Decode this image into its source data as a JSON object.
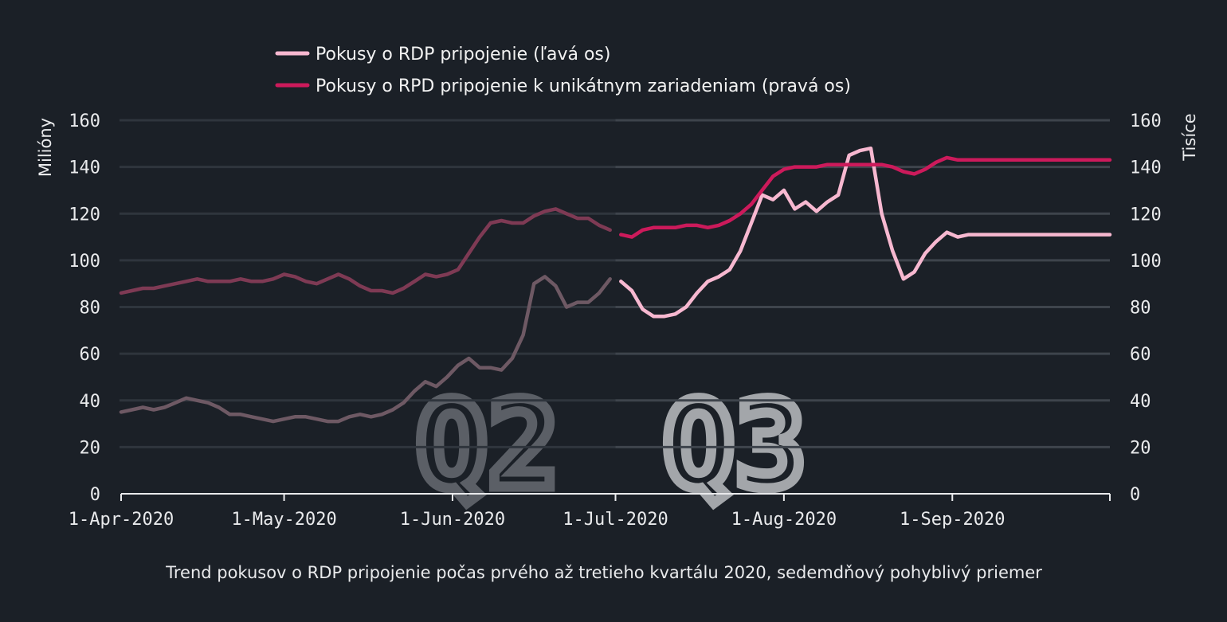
{
  "chart_data": {
    "type": "line",
    "caption": "Trend pokusov o RDP pripojenie počas prvého až tretieho kvartálu 2020, sedemdňový pohyblivý priemer",
    "ylabel_left": "Milióny",
    "ylabel_right": "Tisíce",
    "ylim": [
      0,
      160
    ],
    "y_ticks": [
      "0",
      "20",
      "40",
      "60",
      "80",
      "100",
      "120",
      "140",
      "160"
    ],
    "x_tick_labels": [
      "1-Apr-2020",
      "1-May-2020",
      "1-Jun-2020",
      "1-Jul-2020",
      "1-Aug-2020",
      "1-Sep-2020"
    ],
    "x_tick_days": [
      0,
      30,
      61,
      91,
      122,
      153
    ],
    "x_end_day": 182,
    "quarter_split_day": 91,
    "grid": true,
    "legend_position": "top",
    "quarter_labels": [
      {
        "text": "Q2",
        "color": "#5b5f66"
      },
      {
        "text": "Q3",
        "color": "#a3a6aa"
      }
    ],
    "series": [
      {
        "name": "Pokusy o RDP pripojenie (ľavá os)",
        "axis": "left",
        "color": "#f7b8d0",
        "color_faded": "#6e5964",
        "x": [
          0,
          2,
          4,
          6,
          8,
          10,
          12,
          14,
          16,
          18,
          20,
          22,
          24,
          26,
          28,
          30,
          32,
          34,
          36,
          38,
          40,
          42,
          44,
          46,
          48,
          50,
          52,
          54,
          56,
          58,
          60,
          62,
          64,
          66,
          68,
          70,
          72,
          74,
          76,
          78,
          80,
          82,
          84,
          86,
          88,
          90,
          92,
          94,
          96,
          98,
          100,
          102,
          104,
          106,
          108,
          110,
          112,
          114,
          116,
          118,
          120,
          122,
          124,
          126,
          128,
          130,
          132,
          134,
          136,
          138,
          140,
          142,
          144,
          146,
          148,
          150,
          152,
          154,
          156,
          158,
          160,
          162,
          164,
          166,
          168,
          170,
          172,
          174,
          176,
          178,
          180,
          182
        ],
        "values": [
          35,
          36,
          37,
          36,
          37,
          39,
          41,
          40,
          39,
          37,
          34,
          34,
          33,
          32,
          31,
          32,
          33,
          33,
          32,
          31,
          31,
          33,
          34,
          33,
          34,
          36,
          39,
          44,
          48,
          46,
          50,
          55,
          58,
          54,
          54,
          53,
          58,
          68,
          90,
          93,
          89,
          80,
          82,
          82,
          86,
          92,
          91,
          87,
          79,
          76,
          76,
          77,
          80,
          86,
          91,
          93,
          96,
          104,
          116,
          128,
          126,
          130,
          122,
          125,
          121,
          125,
          128,
          145,
          147,
          148,
          120,
          104,
          92,
          95,
          103,
          108,
          112,
          110,
          111,
          111,
          111,
          111,
          111,
          111,
          111,
          111,
          111,
          111,
          111,
          111,
          111,
          111
        ]
      },
      {
        "name": "Pokusy o RPD pripojenie k unikátnym zariadeniam (pravá os)",
        "axis": "right",
        "color": "#cc1a5b",
        "color_faded": "#7e3a54",
        "x": [
          0,
          2,
          4,
          6,
          8,
          10,
          12,
          14,
          16,
          18,
          20,
          22,
          24,
          26,
          28,
          30,
          32,
          34,
          36,
          38,
          40,
          42,
          44,
          46,
          48,
          50,
          52,
          54,
          56,
          58,
          60,
          62,
          64,
          66,
          68,
          70,
          72,
          74,
          76,
          78,
          80,
          82,
          84,
          86,
          88,
          90,
          92,
          94,
          96,
          98,
          100,
          102,
          104,
          106,
          108,
          110,
          112,
          114,
          116,
          118,
          120,
          122,
          124,
          126,
          128,
          130,
          132,
          134,
          136,
          138,
          140,
          142,
          144,
          146,
          148,
          150,
          152,
          154,
          156,
          158,
          160,
          162,
          164,
          166,
          168,
          170,
          172,
          174,
          176,
          178,
          180,
          182
        ],
        "values": [
          86,
          87,
          88,
          88,
          89,
          90,
          91,
          92,
          91,
          91,
          91,
          92,
          91,
          91,
          92,
          94,
          93,
          91,
          90,
          92,
          94,
          92,
          89,
          87,
          87,
          86,
          88,
          91,
          94,
          93,
          94,
          96,
          103,
          110,
          116,
          117,
          116,
          116,
          119,
          121,
          122,
          120,
          118,
          118,
          115,
          113,
          111,
          110,
          113,
          114,
          114,
          114,
          115,
          115,
          114,
          115,
          117,
          120,
          124,
          130,
          136,
          139,
          140,
          140,
          140,
          141,
          141,
          141,
          141,
          141,
          141,
          140,
          138,
          137,
          139,
          142,
          144,
          143,
          143,
          143,
          143,
          143,
          143,
          143,
          143,
          143,
          143,
          143,
          143,
          143,
          143,
          143
        ]
      }
    ]
  }
}
